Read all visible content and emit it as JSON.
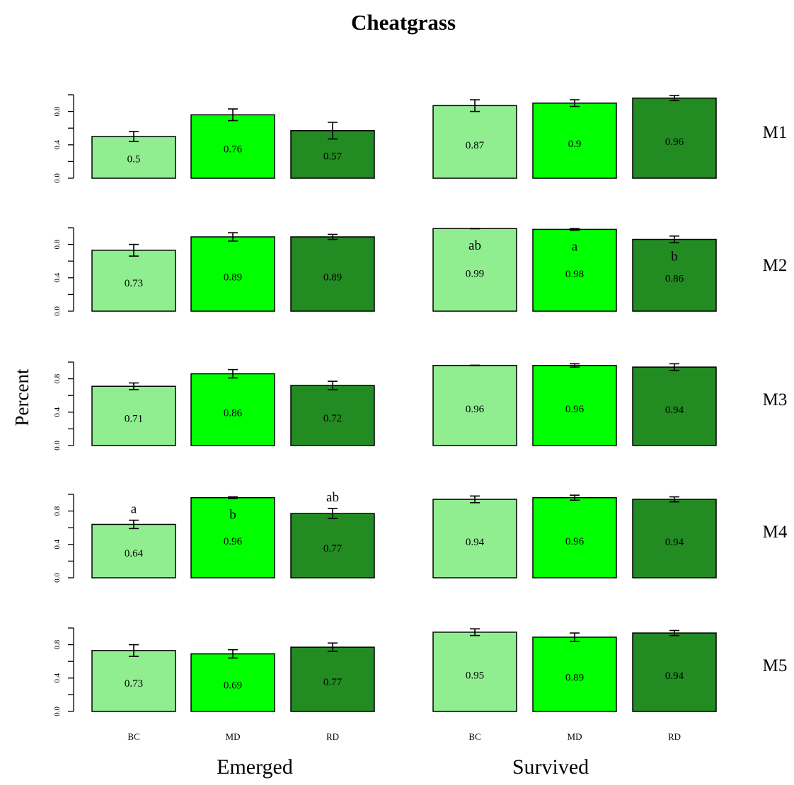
{
  "chart_data": {
    "type": "bar",
    "title": "Cheatgrass",
    "ylabel": "Percent",
    "columns": [
      "Emerged",
      "Survived"
    ],
    "categories": [
      "BC",
      "MD",
      "RD"
    ],
    "ylim": [
      0,
      1
    ],
    "yticks": [
      "0.0",
      "0.4",
      "0.8"
    ],
    "colors": {
      "BC": "#90ee90",
      "MD": "#00ff00",
      "RD": "#228b22"
    },
    "grid": false,
    "panels": [
      {
        "row": "M1",
        "column": "Emerged",
        "values": [
          0.5,
          0.76,
          0.57
        ],
        "errors": [
          0.06,
          0.07,
          0.1
        ],
        "labels": [
          "0.5",
          "0.76",
          "0.57"
        ],
        "sig": [
          "",
          "",
          ""
        ]
      },
      {
        "row": "M1",
        "column": "Survived",
        "values": [
          0.87,
          0.9,
          0.96
        ],
        "errors": [
          0.07,
          0.04,
          0.03
        ],
        "labels": [
          "0.87",
          "0.9",
          "0.96"
        ],
        "sig": [
          "",
          "",
          ""
        ]
      },
      {
        "row": "M2",
        "column": "Emerged",
        "values": [
          0.73,
          0.89,
          0.89
        ],
        "errors": [
          0.07,
          0.05,
          0.03
        ],
        "labels": [
          "0.73",
          "0.89",
          "0.89"
        ],
        "sig": [
          "",
          "",
          ""
        ]
      },
      {
        "row": "M2",
        "column": "Survived",
        "values": [
          0.99,
          0.98,
          0.86
        ],
        "errors": [
          0.0,
          0.01,
          0.04
        ],
        "labels": [
          "0.99",
          "0.98",
          "0.86"
        ],
        "sig": [
          "ab",
          "a",
          "b"
        ]
      },
      {
        "row": "M3",
        "column": "Emerged",
        "values": [
          0.71,
          0.86,
          0.72
        ],
        "errors": [
          0.04,
          0.05,
          0.05
        ],
        "labels": [
          "0.71",
          "0.86",
          "0.72"
        ],
        "sig": [
          "",
          "",
          ""
        ]
      },
      {
        "row": "M3",
        "column": "Survived",
        "values": [
          0.96,
          0.96,
          0.94
        ],
        "errors": [
          0.0,
          0.02,
          0.04
        ],
        "labels": [
          "0.96",
          "0.96",
          "0.94"
        ],
        "sig": [
          "",
          "",
          ""
        ]
      },
      {
        "row": "M4",
        "column": "Emerged",
        "values": [
          0.64,
          0.96,
          0.77
        ],
        "errors": [
          0.05,
          0.01,
          0.06
        ],
        "labels": [
          "0.64",
          "0.96",
          "0.77"
        ],
        "sig": [
          "a",
          "b",
          "ab"
        ]
      },
      {
        "row": "M4",
        "column": "Survived",
        "values": [
          0.94,
          0.96,
          0.94
        ],
        "errors": [
          0.04,
          0.03,
          0.03
        ],
        "labels": [
          "0.94",
          "0.96",
          "0.94"
        ],
        "sig": [
          "",
          "",
          ""
        ]
      },
      {
        "row": "M5",
        "column": "Emerged",
        "values": [
          0.73,
          0.69,
          0.77
        ],
        "errors": [
          0.07,
          0.05,
          0.05
        ],
        "labels": [
          "0.73",
          "0.69",
          "0.77"
        ],
        "sig": [
          "",
          "",
          ""
        ]
      },
      {
        "row": "M5",
        "column": "Survived",
        "values": [
          0.95,
          0.89,
          0.94
        ],
        "errors": [
          0.04,
          0.05,
          0.03
        ],
        "labels": [
          "0.95",
          "0.89",
          "0.94"
        ],
        "sig": [
          "",
          "",
          ""
        ]
      }
    ]
  }
}
